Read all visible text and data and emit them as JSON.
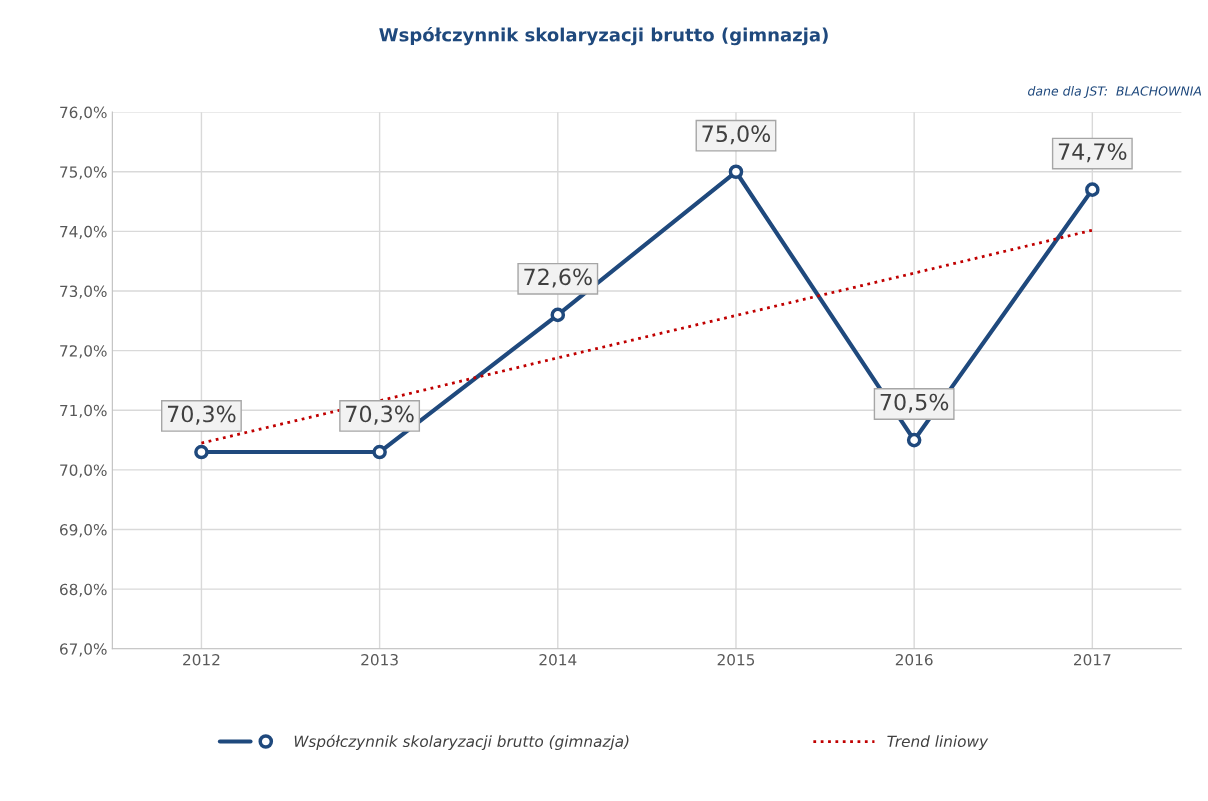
{
  "chart_data": {
    "type": "line",
    "title": "Współczynnik skolaryzacji brutto (gimnazja)",
    "annotations": [
      "dane dla JST:  BLACHOWNIA"
    ],
    "categories": [
      "2012",
      "2013",
      "2014",
      "2015",
      "2016",
      "2017"
    ],
    "series": [
      {
        "name": "Współczynnik skolaryzacji brutto (gimnazja)",
        "color": "#1f497d",
        "values": [
          70.3,
          70.3,
          72.6,
          75.0,
          70.5,
          74.7
        ],
        "value_labels": [
          "70,3%",
          "70,3%",
          "72,6%",
          "75,0%",
          "70,5%",
          "74,7%"
        ],
        "marker": "circle",
        "line_style": "solid"
      },
      {
        "name": "Trend liniowy",
        "type": "line",
        "color": "#c00000",
        "values": [
          70.45,
          71.16,
          71.88,
          72.59,
          73.3,
          74.02
        ],
        "marker": "none",
        "line_style": "dotted"
      }
    ],
    "ylim": [
      67,
      76
    ],
    "yticks": [
      {
        "value": 67,
        "label": "67,0%"
      },
      {
        "value": 68,
        "label": "68,0%"
      },
      {
        "value": 69,
        "label": "69,0%"
      },
      {
        "value": 70,
        "label": "70,0%"
      },
      {
        "value": 71,
        "label": "71,0%"
      },
      {
        "value": 72,
        "label": "72,0%"
      },
      {
        "value": 73,
        "label": "73,0%"
      },
      {
        "value": 74,
        "label": "74,0%"
      },
      {
        "value": 75,
        "label": "75,0%"
      },
      {
        "value": 76,
        "label": "76,0%"
      }
    ],
    "grid": true,
    "legend": "bottom"
  }
}
